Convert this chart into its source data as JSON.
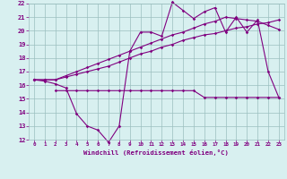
{
  "x": [
    0,
    1,
    2,
    3,
    4,
    5,
    6,
    7,
    8,
    9,
    10,
    11,
    12,
    13,
    14,
    15,
    16,
    17,
    18,
    19,
    20,
    21,
    22,
    23
  ],
  "line_jagged": [
    16.4,
    16.3,
    16.1,
    15.8,
    13.9,
    13.0,
    12.7,
    11.8,
    13.0,
    18.5,
    19.9,
    19.9,
    19.6,
    22.1,
    21.5,
    20.9,
    21.4,
    21.7,
    19.9,
    21.0,
    19.9,
    20.8,
    17.0,
    15.1
  ],
  "line_upper": [
    16.4,
    16.4,
    16.4,
    16.7,
    17.0,
    17.3,
    17.6,
    17.9,
    18.2,
    18.5,
    18.8,
    19.1,
    19.4,
    19.7,
    19.9,
    20.2,
    20.5,
    20.7,
    21.0,
    20.9,
    20.8,
    20.7,
    20.4,
    20.1
  ],
  "line_lower": [
    16.4,
    16.4,
    16.4,
    16.6,
    16.8,
    17.0,
    17.2,
    17.4,
    17.7,
    18.0,
    18.3,
    18.5,
    18.8,
    19.0,
    19.3,
    19.5,
    19.7,
    19.8,
    20.0,
    20.2,
    20.3,
    20.5,
    20.6,
    20.8
  ],
  "line_flat_x": [
    2,
    3,
    4,
    5,
    6,
    7,
    8,
    9,
    10,
    11,
    12,
    13,
    14,
    15,
    16,
    17,
    18,
    19,
    20,
    21,
    22,
    23
  ],
  "line_flat": [
    15.6,
    15.6,
    15.6,
    15.6,
    15.6,
    15.6,
    15.6,
    15.6,
    15.6,
    15.6,
    15.6,
    15.6,
    15.6,
    15.6,
    15.1,
    15.1,
    15.1,
    15.1,
    15.1,
    15.1,
    15.1,
    15.1
  ],
  "color": "#800080",
  "bg_color": "#d8f0f0",
  "grid_color": "#9bbfbf",
  "xlabel": "Windchill (Refroidissement éolien,°C)",
  "ylim": [
    12,
    22
  ],
  "xlim": [
    -0.5,
    23.5
  ],
  "yticks": [
    12,
    13,
    14,
    15,
    16,
    17,
    18,
    19,
    20,
    21,
    22
  ],
  "xticks": [
    0,
    1,
    2,
    3,
    4,
    5,
    6,
    7,
    8,
    9,
    10,
    11,
    12,
    13,
    14,
    15,
    16,
    17,
    18,
    19,
    20,
    21,
    22,
    23
  ]
}
